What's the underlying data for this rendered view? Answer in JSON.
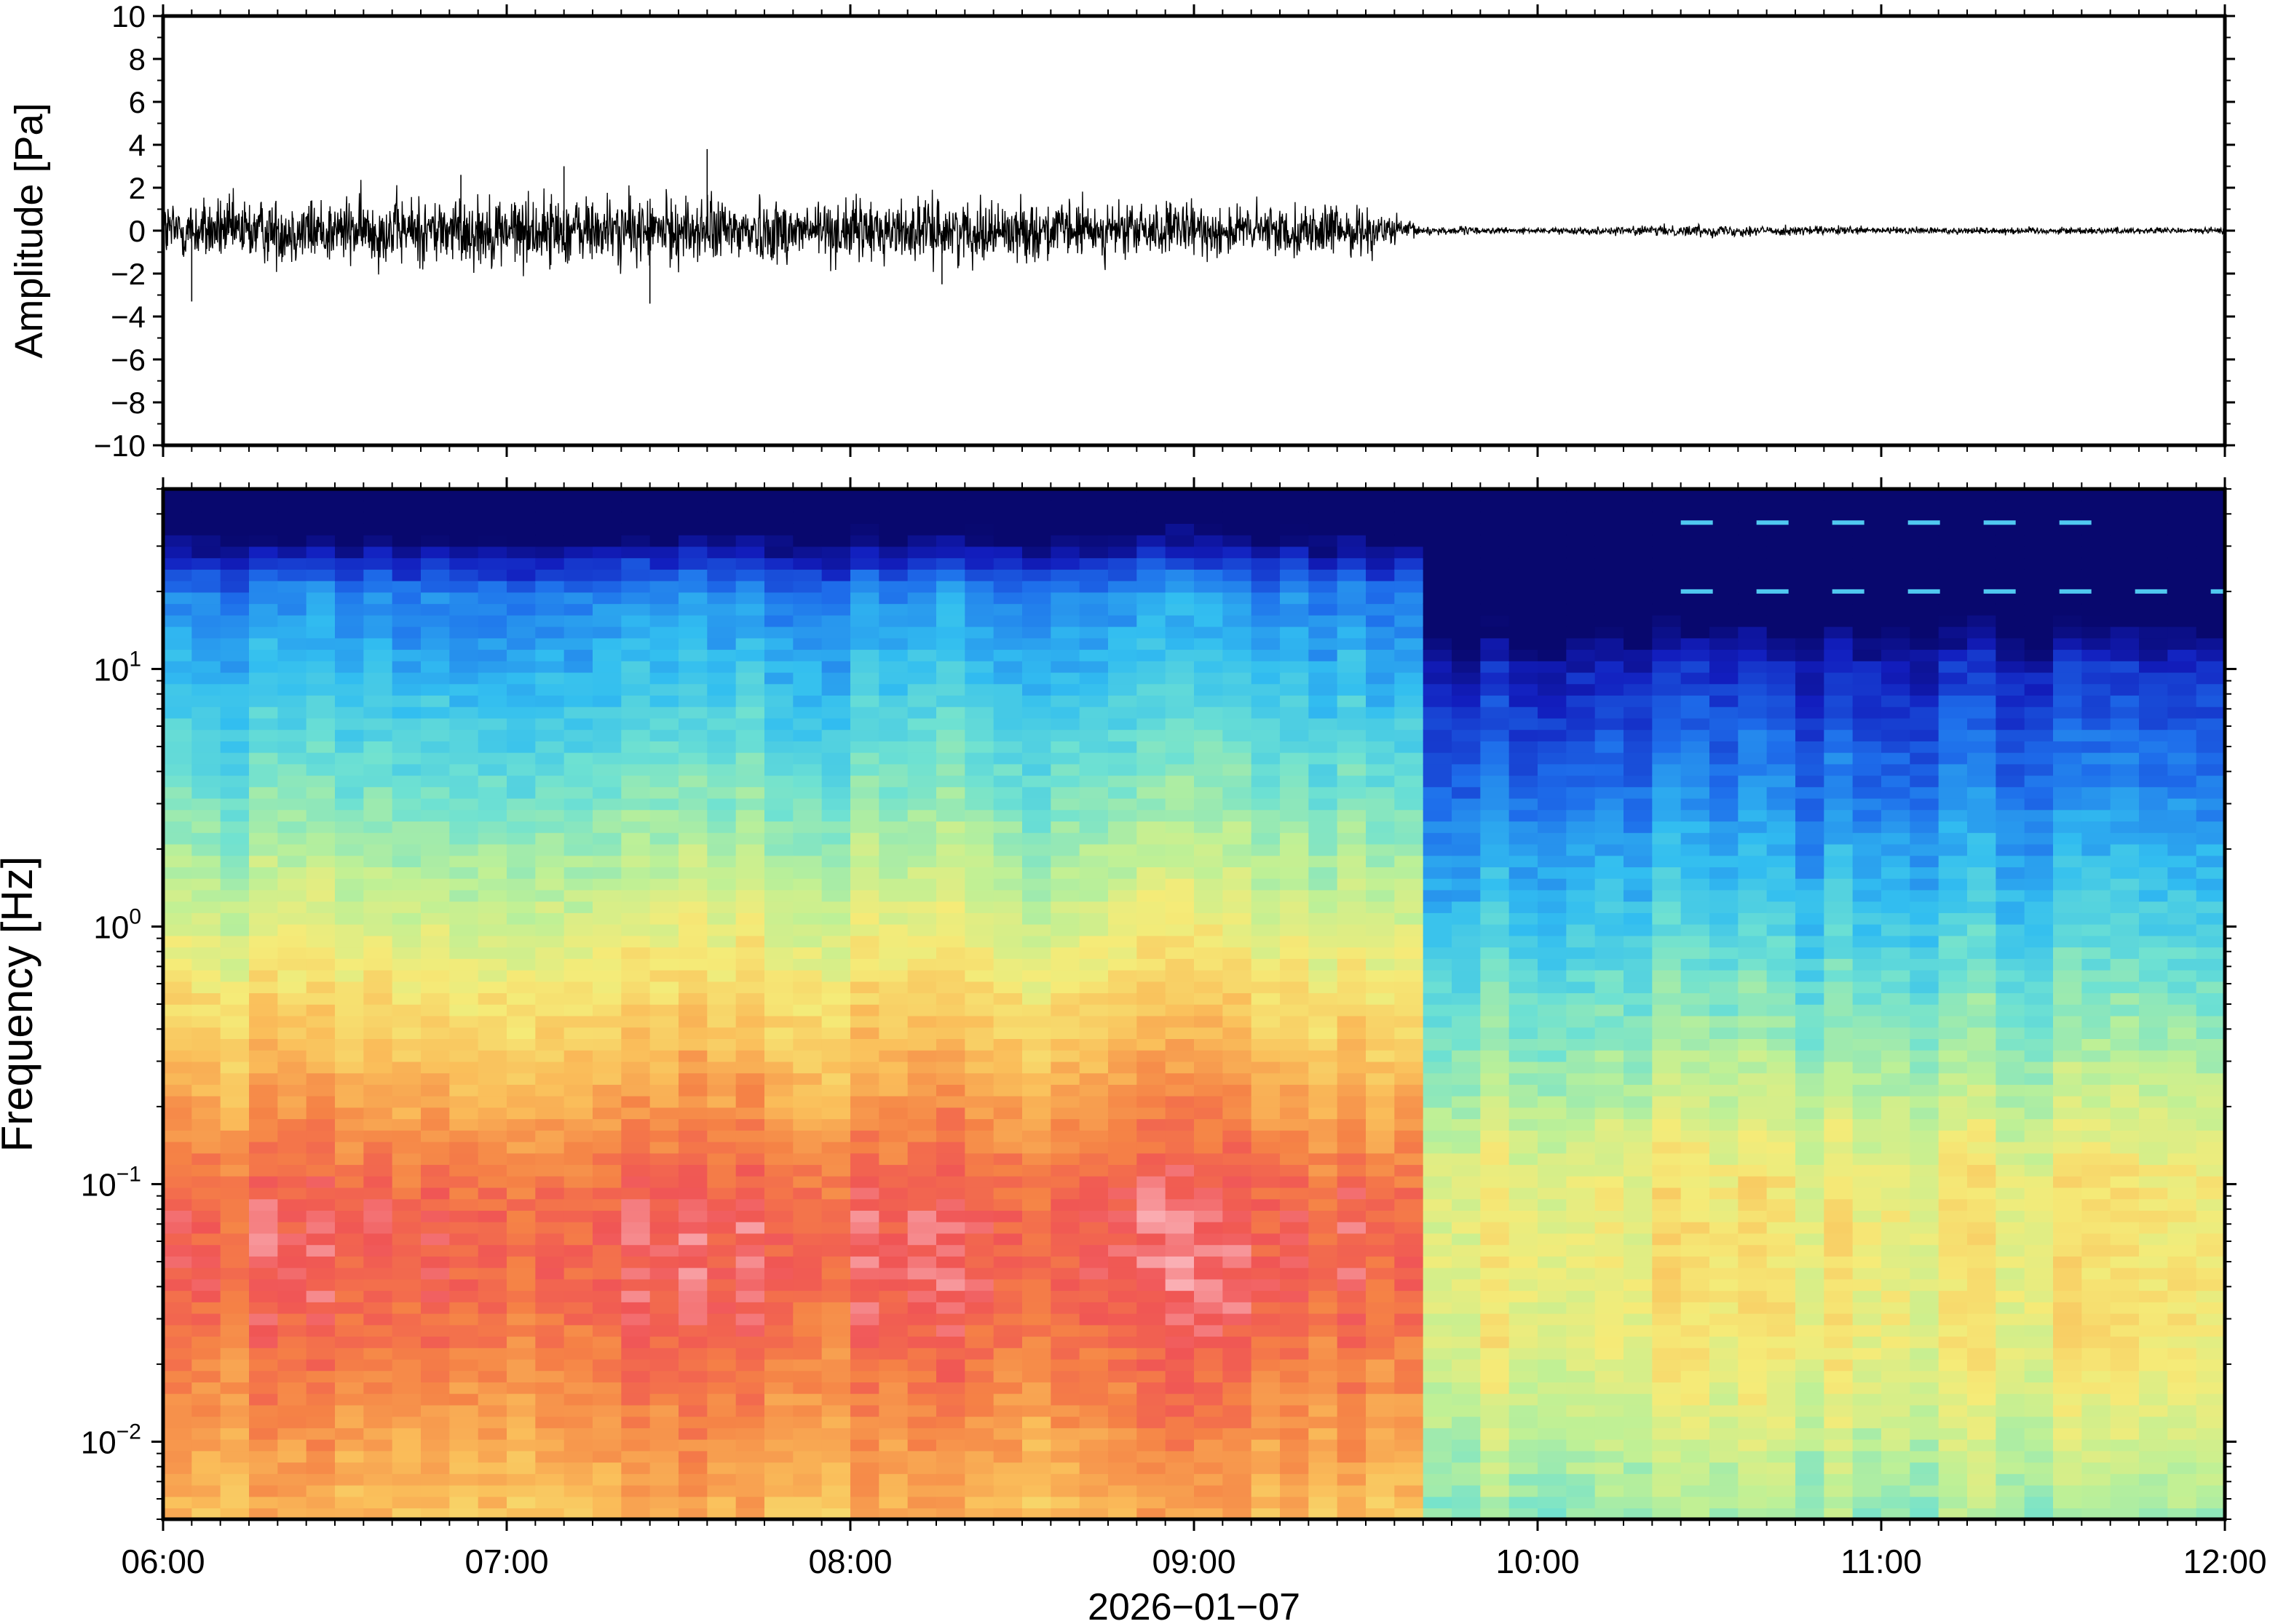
{
  "chart_data": [
    {
      "type": "line",
      "panel": "waveform",
      "ylabel": "Amplitude [Pa]",
      "ylim": [
        -10,
        10
      ],
      "yticks": [
        -10,
        -8,
        -6,
        -4,
        -2,
        0,
        2,
        4,
        6,
        8,
        10
      ],
      "ytick_labels": [
        "−10",
        "−8",
        "−6",
        "−4",
        "−2",
        "0",
        "2",
        "4",
        "6",
        "8",
        "10"
      ],
      "xlim": [
        "06:00",
        "12:00"
      ],
      "envelope": {
        "description_points_time": [
          "06:00",
          "06:30",
          "07:00",
          "07:30",
          "08:00",
          "08:30",
          "09:00",
          "09:30",
          "09:40",
          "10:00",
          "10:30",
          "11:00",
          "11:30",
          "12:00"
        ],
        "half_width_pa": [
          1.3,
          1.4,
          1.5,
          1.4,
          1.3,
          1.2,
          1.1,
          1.0,
          0.2,
          0.1,
          0.25,
          0.15,
          0.15,
          0.12
        ]
      },
      "peaks": [
        {
          "t": "06:52",
          "value": 2.6
        },
        {
          "t": "07:10",
          "value": 3.0
        },
        {
          "t": "07:35",
          "value": 3.8
        },
        {
          "t": "06:05",
          "value": -3.3
        },
        {
          "t": "07:25",
          "value": -3.4
        },
        {
          "t": "08:16",
          "value": -2.5
        }
      ],
      "line_color": "#000000"
    },
    {
      "type": "heatmap",
      "panel": "spectrogram",
      "ylabel": "Frequency [Hz]",
      "yscale": "log",
      "ylim": [
        0.005,
        50
      ],
      "yticks": [
        0.01,
        0.1,
        1,
        10
      ],
      "ytick_labels": [
        {
          "base": "10",
          "exp": "−2"
        },
        {
          "base": "10",
          "exp": "−1"
        },
        {
          "base": "10",
          "exp": "0"
        },
        {
          "base": "10",
          "exp": "1"
        }
      ],
      "xlabel": "2026−01−07",
      "x_ticks": [
        "06:00",
        "07:00",
        "08:00",
        "09:00",
        "10:00",
        "11:00",
        "12:00"
      ],
      "xlim": [
        "06:00",
        "12:00"
      ],
      "colormap": "jet",
      "transition_time": "09:38",
      "time_columns": 72,
      "freq_rows": 90,
      "notable_lines": [
        {
          "freq_hz": 20,
          "from": "10:25",
          "to": "12:00"
        },
        {
          "freq_hz": 37,
          "from": "10:25",
          "to": "11:40"
        }
      ]
    }
  ]
}
